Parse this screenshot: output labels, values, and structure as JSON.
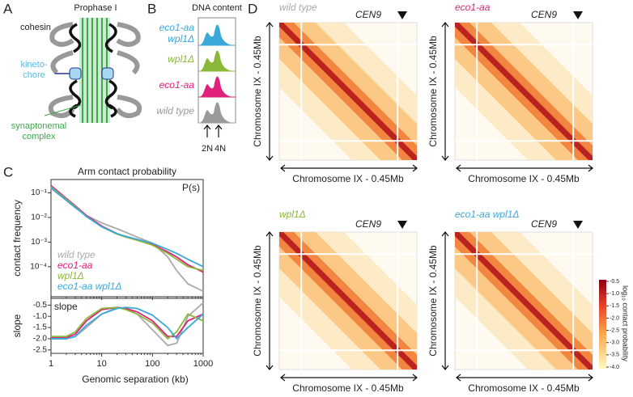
{
  "figure": {
    "A": {
      "letter": "A",
      "title": "Prophase I",
      "cohesin": "cohesin",
      "kinetochore": [
        "kineto-",
        "chore"
      ],
      "sc": [
        "synaptonemal",
        "complex"
      ]
    },
    "B": {
      "letter": "B",
      "title": "DNA content",
      "samples": [
        {
          "name": [
            "eco1-aa",
            "wpl1Δ"
          ],
          "color": "#3aa8d8"
        },
        {
          "name": [
            "wpl1Δ"
          ],
          "color": "#8cb83a"
        },
        {
          "name": [
            "eco1-aa"
          ],
          "color": "#e0207a"
        },
        {
          "name": [
            "wild type"
          ],
          "color": "#9a9a9a"
        }
      ],
      "ploidy": [
        "2N",
        "4N"
      ]
    },
    "C": {
      "letter": "C"
    },
    "D": {
      "letter": "D",
      "cen": "CEN9",
      "axis_label": "Chromosome IX - 0.45Mb",
      "maps": [
        {
          "genotype": "wild type",
          "color": "#aaaaaa"
        },
        {
          "genotype": "eco1-aa",
          "color": "#e0207a"
        },
        {
          "genotype": "wpl1Δ",
          "color": "#8cb83a"
        },
        {
          "genotype": "eco1-aa wpl1Δ",
          "color": "#3aa8d8"
        }
      ],
      "colorbar": {
        "label": "log₁₀ contact probability",
        "ticks": [
          -0.5,
          {
            "value": -1,
            "label": "-1.0"
          },
          -1.5,
          {
            "value": -2,
            "label": "-2.0"
          },
          -2.5,
          {
            "value": -3,
            "label": "-3.0"
          },
          -3.5,
          {
            "value": -4,
            "label": "-4.0"
          }
        ]
      }
    }
  },
  "chart_data": [
    {
      "type": "line",
      "title": "Arm contact probability",
      "ylabel": "contact frequency",
      "annotation": "P(s)",
      "log_x": true,
      "log_y": true,
      "legend": "lower left",
      "x": [
        1,
        2,
        3,
        5,
        10,
        20,
        30,
        50,
        100,
        200,
        300,
        500,
        1000
      ],
      "xlim": [
        1,
        1000
      ],
      "xticks": [
        1,
        10,
        100,
        1000
      ],
      "ylim": [
        6e-06,
        0.35
      ],
      "yticks": [
        {
          "value": 0.1,
          "label": "10⁻¹"
        },
        {
          "value": 0.01,
          "label": "10⁻²"
        },
        {
          "value": 0.001,
          "label": "10⁻³"
        },
        {
          "value": 0.0001,
          "label": "10⁻⁴"
        }
      ],
      "series": [
        {
          "name": "wild type",
          "color": "#aaaaaa",
          "values": [
            0.15,
            0.05,
            0.025,
            0.012,
            0.006,
            0.0035,
            0.0025,
            0.0016,
            0.0009,
            0.00025,
            7e-05,
            2e-05,
            1e-05
          ]
        },
        {
          "name": "eco1-aa",
          "color": "#e0207a",
          "values": [
            0.2,
            0.06,
            0.03,
            0.012,
            0.0045,
            0.0022,
            0.0016,
            0.0012,
            0.0008,
            0.0004,
            0.00025,
            0.00012,
            6e-05
          ]
        },
        {
          "name": "wpl1Δ",
          "color": "#8cb83a",
          "values": [
            0.18,
            0.055,
            0.028,
            0.011,
            0.0042,
            0.0021,
            0.0016,
            0.0012,
            0.00075,
            0.00035,
            0.0002,
            0.0001,
            7e-05
          ]
        },
        {
          "name": "eco1-aa wpl1Δ",
          "color": "#3aa8d8",
          "values": [
            0.17,
            0.05,
            0.026,
            0.011,
            0.0042,
            0.0022,
            0.0017,
            0.0013,
            0.0009,
            0.0005,
            0.00035,
            0.0002,
            0.0001
          ]
        }
      ]
    },
    {
      "type": "line",
      "ylabel": "slope",
      "annotation": "slope",
      "xlabel": "Genomic separation (kb)",
      "log_x": true,
      "log_y": false,
      "x": [
        1,
        2,
        3,
        5,
        10,
        20,
        30,
        50,
        100,
        200,
        300,
        500,
        1000
      ],
      "xlim": [
        1,
        1000
      ],
      "xticks": [
        1,
        10,
        100,
        1000
      ],
      "ylim": [
        -2.65,
        -0.2
      ],
      "yticks": [
        -0.5,
        {
          "value": -1,
          "label": "-1.0"
        },
        -1.5,
        {
          "value": -2,
          "label": "-2.0"
        },
        -2.5
      ],
      "series": [
        {
          "color": "#aaaaaa",
          "values": [
            -2.0,
            -2.0,
            -1.9,
            -1.5,
            -0.9,
            -0.6,
            -0.65,
            -0.9,
            -1.6,
            -2.3,
            -2.2,
            -1.0,
            -0.4
          ]
        },
        {
          "color": "#e0207a",
          "values": [
            -1.95,
            -1.95,
            -1.8,
            -1.2,
            -0.7,
            -0.6,
            -0.65,
            -0.8,
            -1.2,
            -1.9,
            -1.9,
            -1.2,
            -0.9
          ]
        },
        {
          "color": "#8cb83a",
          "values": [
            -1.9,
            -1.9,
            -1.7,
            -1.1,
            -0.65,
            -0.6,
            -0.7,
            -0.9,
            -1.3,
            -2.0,
            -1.7,
            -0.9,
            -1.2
          ]
        },
        {
          "color": "#3aa8d8",
          "values": [
            -2.0,
            -2.0,
            -1.9,
            -1.4,
            -0.9,
            -0.65,
            -0.6,
            -0.65,
            -0.95,
            -1.5,
            -2.0,
            -1.5,
            -0.9
          ]
        }
      ]
    }
  ]
}
